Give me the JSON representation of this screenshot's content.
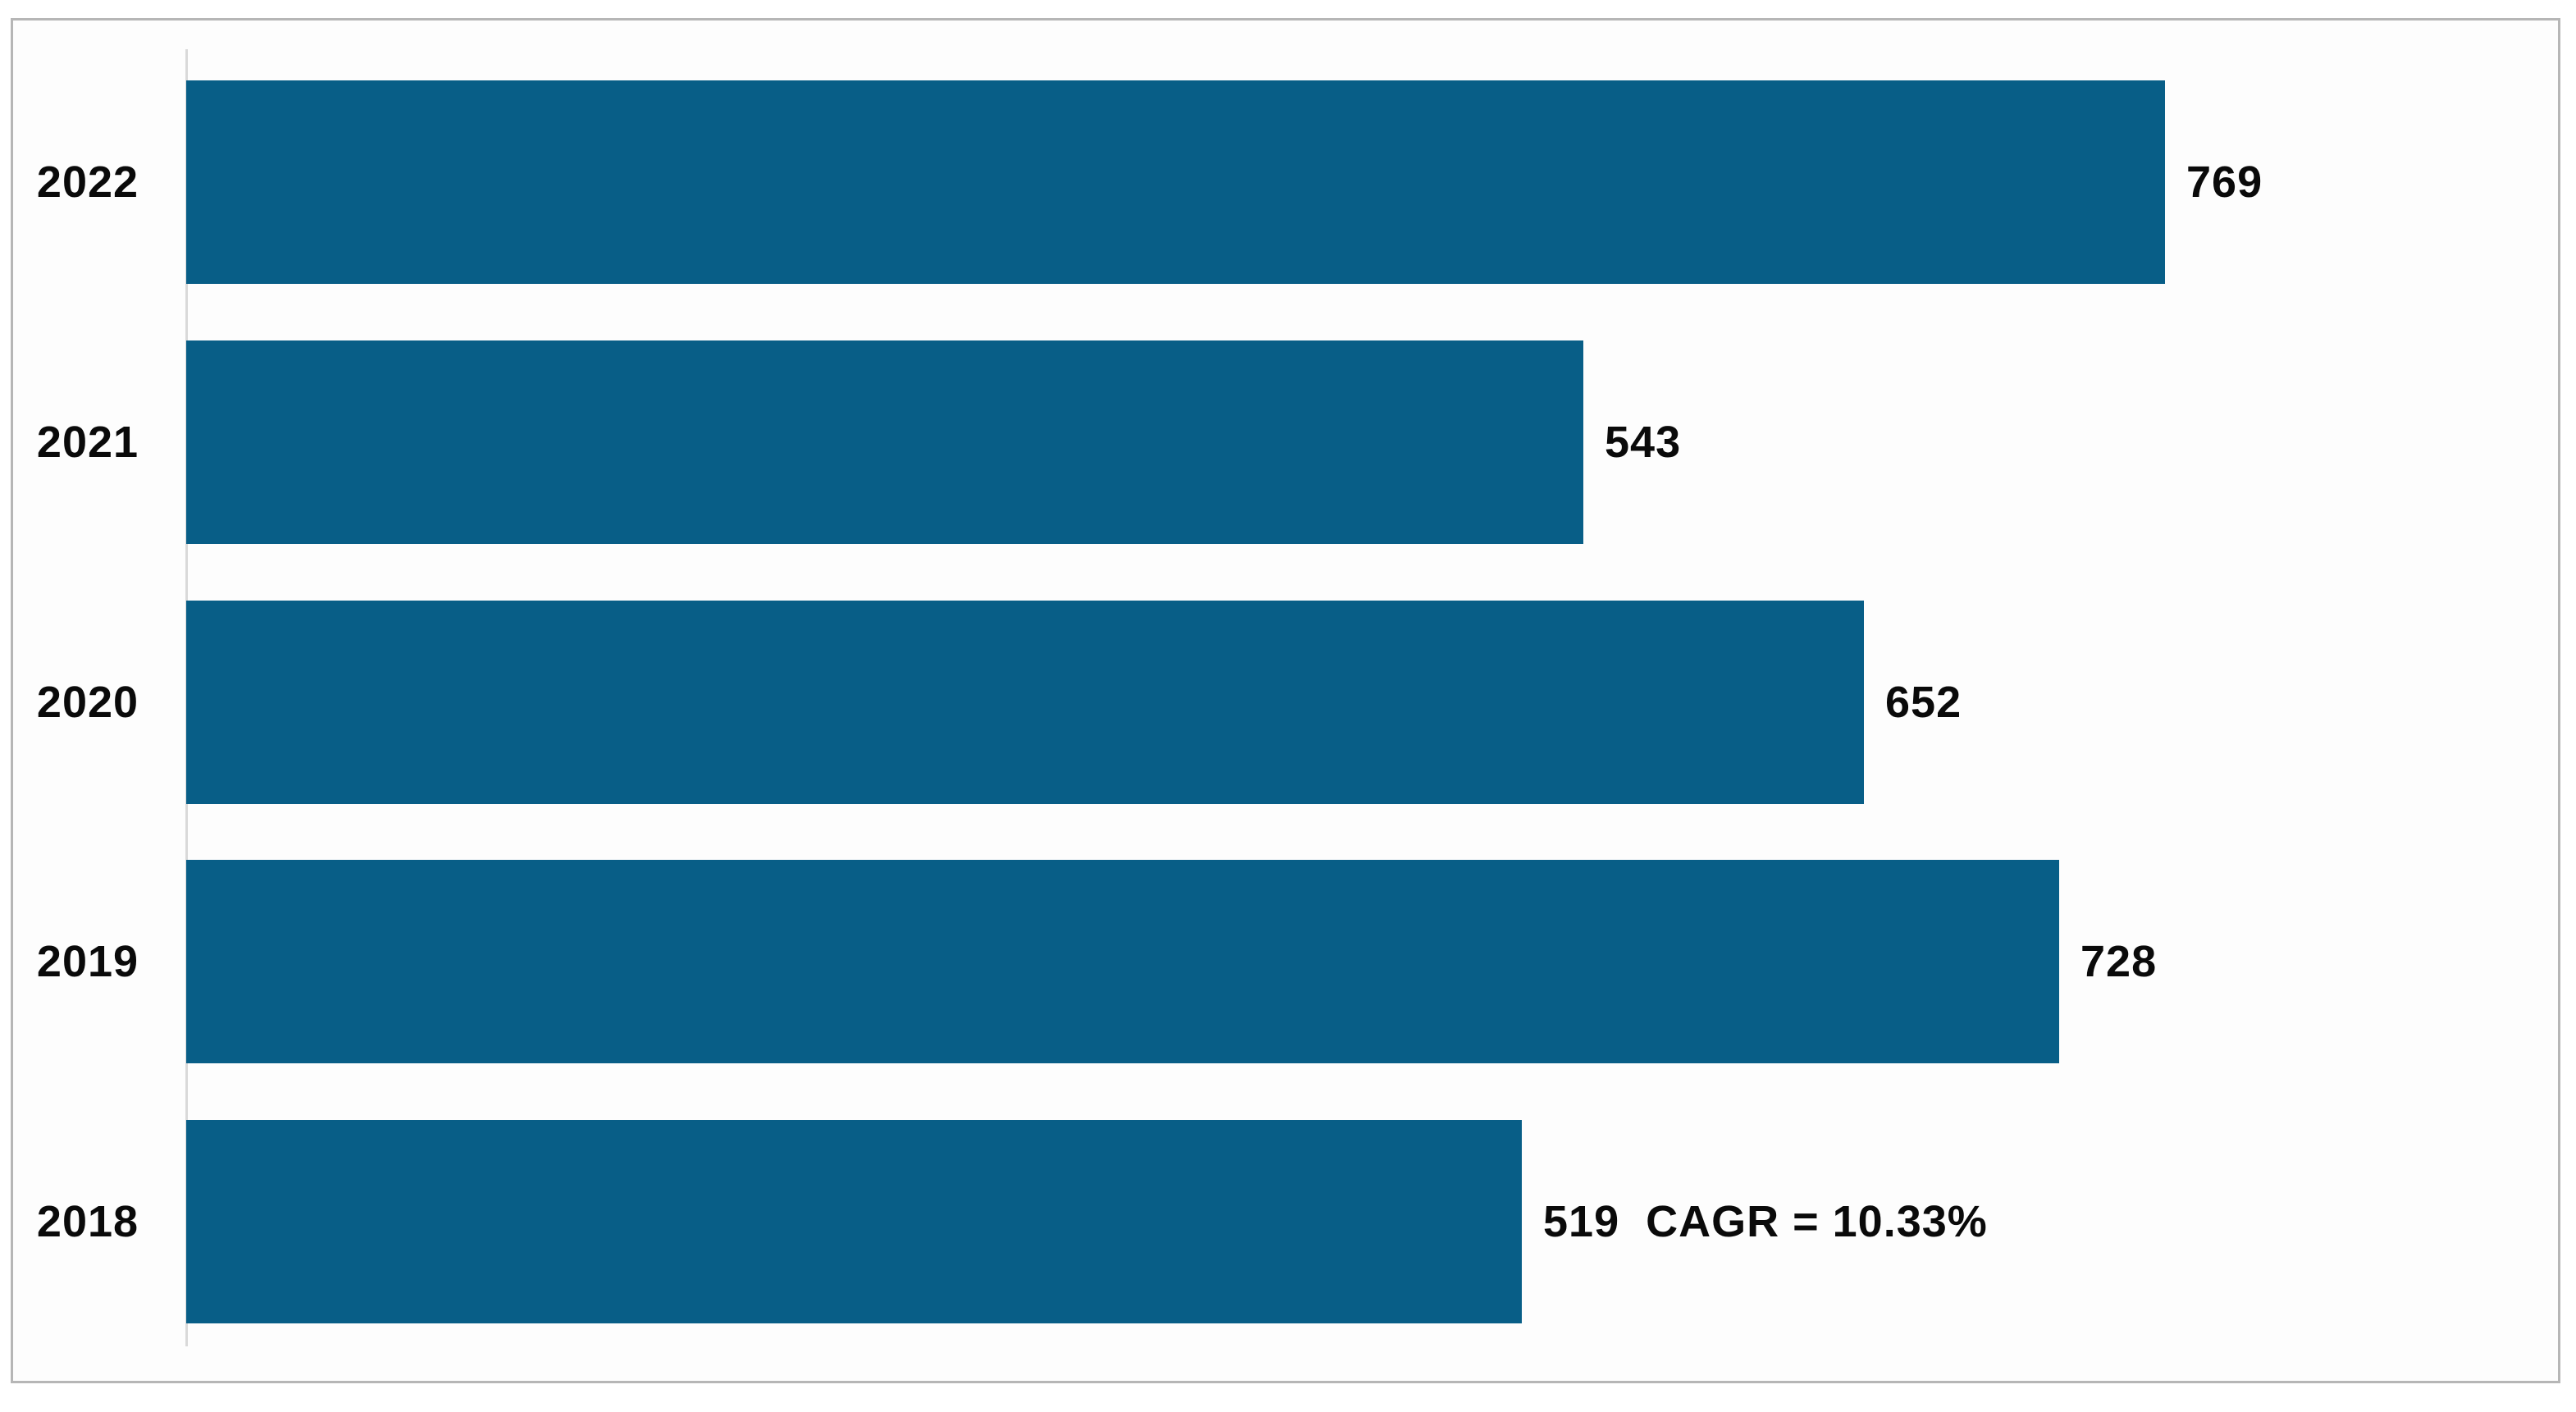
{
  "chart_data": {
    "type": "bar",
    "orientation": "horizontal",
    "categories": [
      "2022",
      "2021",
      "2020",
      "2019",
      "2018"
    ],
    "values": [
      769,
      543,
      652,
      728,
      519
    ],
    "value_labels": [
      "769",
      "543",
      "652",
      "728",
      "519  CAGR = 10.33%"
    ],
    "annotation": "CAGR = 10.33%",
    "xlim": [
      0,
      800
    ],
    "grid": false,
    "legend_position": "none",
    "bar_color": "#085E87",
    "text_color": "#0A0A0A",
    "axis_line_color": "#D9D9D9",
    "frame_border_color": "#B6B6B6",
    "plot_background": "#FDFDFD"
  }
}
